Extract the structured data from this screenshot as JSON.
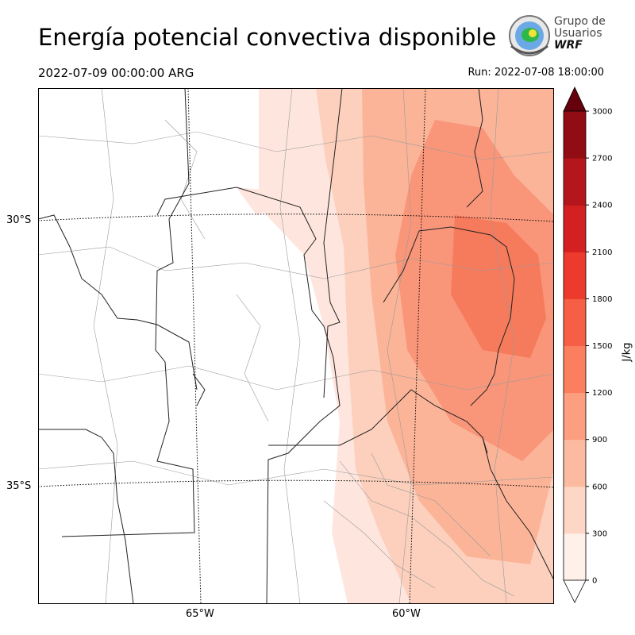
{
  "header": {
    "title": "Energía potencial convectiva disponible",
    "valid_time": "2022-07-09 00:00:00 ARG",
    "run_time": "Run: 2022-07-08 18:00:00"
  },
  "logo": {
    "line1": "Grupo de",
    "line2": "Usuarios",
    "line3": "WRF"
  },
  "map": {
    "variable": "CAPE",
    "lat_labels": [
      "30°S",
      "35°S"
    ],
    "lon_labels": [
      "65°W",
      "60°W"
    ],
    "fill_colors": [
      "#fee6de",
      "#fcd0bd",
      "#fbb498",
      "#f9967a",
      "#f67a5c"
    ]
  },
  "colorbar": {
    "unit": "J/kg",
    "ticks": [
      "0",
      "300",
      "600",
      "900",
      "1200",
      "1500",
      "1800",
      "2100",
      "2400",
      "2700",
      "3000"
    ],
    "colors": [
      "#fff0ea",
      "#fdd6c6",
      "#fcbba0",
      "#fc9e7f",
      "#fb7f5f",
      "#f65e45",
      "#ec3b2c",
      "#d32020",
      "#b5161b",
      "#910d13"
    ],
    "extend_color": "#67000d"
  }
}
